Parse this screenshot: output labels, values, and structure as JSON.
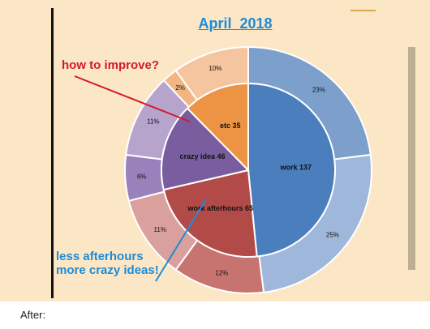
{
  "chart_data": {
    "type": "pie",
    "title": "April  2018",
    "inner_ring": [
      {
        "label": "work",
        "value": 137,
        "color": "#4a7ebc"
      },
      {
        "label": "work afterhours",
        "value": 65,
        "color": "#b24a47"
      },
      {
        "label": "crazy idea",
        "value": 46,
        "color": "#7a5d9e"
      },
      {
        "label": "etc",
        "value": 35,
        "color": "#ec9344"
      }
    ],
    "outer_ring": [
      {
        "label": "23%",
        "value": 23,
        "color": "#7c9fcc"
      },
      {
        "label": "25%",
        "value": 25,
        "color": "#9fb7da"
      },
      {
        "label": "12%",
        "value": 12,
        "color": "#c77471"
      },
      {
        "label": "11%",
        "value": 11,
        "color": "#d9a09e"
      },
      {
        "label": "6%",
        "value": 6,
        "color": "#9982bb"
      },
      {
        "label": "11%",
        "value": 11,
        "color": "#b6a4cd"
      },
      {
        "label": "2%",
        "value": 2,
        "color": "#f1b683"
      },
      {
        "label": "10%",
        "value": 10,
        "color": "#f4c59f"
      }
    ]
  },
  "annotations": {
    "improve": "how to improve?",
    "afterhours_line1": "less afterhours",
    "afterhours_line2": "more crazy ideas!"
  },
  "footer": {
    "after_label": "After:"
  }
}
